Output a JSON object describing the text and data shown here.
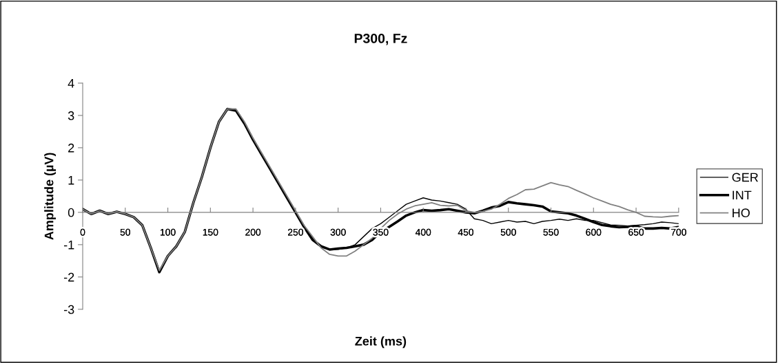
{
  "chart_data": {
    "type": "line",
    "title": "P300, Fz",
    "xlabel": "Zeit (ms)",
    "ylabel": "Amplitude (µV)",
    "x": [
      0,
      10,
      20,
      30,
      40,
      50,
      60,
      70,
      80,
      90,
      100,
      110,
      120,
      130,
      140,
      150,
      160,
      170,
      180,
      190,
      200,
      210,
      220,
      230,
      240,
      250,
      260,
      270,
      280,
      290,
      300,
      310,
      320,
      330,
      340,
      350,
      360,
      370,
      380,
      390,
      400,
      410,
      420,
      430,
      440,
      450,
      460,
      470,
      480,
      490,
      500,
      510,
      520,
      530,
      540,
      550,
      560,
      570,
      580,
      590,
      600,
      610,
      620,
      630,
      640,
      650,
      660,
      670,
      680,
      690,
      700
    ],
    "series": [
      {
        "name": "GER",
        "color": "#000000",
        "values": [
          0.1,
          -0.05,
          0.05,
          -0.05,
          0.02,
          -0.05,
          -0.15,
          -0.4,
          -1.1,
          -1.85,
          -1.35,
          -1.05,
          -0.6,
          0.3,
          1.1,
          2.0,
          2.8,
          3.2,
          3.15,
          2.75,
          2.25,
          1.8,
          1.35,
          0.9,
          0.45,
          0.0,
          -0.45,
          -0.8,
          -1.05,
          -1.15,
          -1.15,
          -1.1,
          -1.0,
          -0.75,
          -0.5,
          -0.35,
          -0.15,
          0.05,
          0.25,
          0.35,
          0.45,
          0.38,
          0.35,
          0.3,
          0.25,
          0.1,
          -0.2,
          -0.25,
          -0.35,
          -0.3,
          -0.25,
          -0.3,
          -0.28,
          -0.35,
          -0.28,
          -0.25,
          -0.21,
          -0.25,
          -0.2,
          -0.25,
          -0.25,
          -0.32,
          -0.39,
          -0.4,
          -0.42,
          -0.4,
          -0.38,
          -0.35,
          -0.3,
          -0.32,
          -0.35
        ]
      },
      {
        "name": "INT",
        "color": "#000000",
        "values": [
          0.1,
          -0.05,
          0.05,
          -0.05,
          0.02,
          -0.05,
          -0.15,
          -0.4,
          -1.1,
          -1.85,
          -1.35,
          -1.05,
          -0.6,
          0.3,
          1.1,
          2.0,
          2.8,
          3.2,
          3.15,
          2.75,
          2.25,
          1.8,
          1.35,
          0.9,
          0.45,
          0.0,
          -0.45,
          -0.85,
          -1.05,
          -1.15,
          -1.12,
          -1.1,
          -1.05,
          -1.0,
          -0.85,
          -0.6,
          -0.45,
          -0.28,
          -0.1,
          0.0,
          0.07,
          0.05,
          0.07,
          0.1,
          0.05,
          0.0,
          -0.03,
          0.05,
          0.15,
          0.2,
          0.32,
          0.28,
          0.25,
          0.22,
          0.18,
          0.03,
          0.0,
          -0.03,
          -0.1,
          -0.2,
          -0.3,
          -0.39,
          -0.43,
          -0.46,
          -0.45,
          -0.43,
          -0.5,
          -0.5,
          -0.48,
          -0.5,
          -0.45
        ]
      },
      {
        "name": "HO",
        "color": "#808080",
        "values": [
          0.1,
          -0.05,
          0.05,
          -0.05,
          0.02,
          -0.05,
          -0.15,
          -0.4,
          -1.1,
          -1.8,
          -1.35,
          -1.05,
          -0.6,
          0.3,
          1.1,
          2.0,
          2.8,
          3.2,
          3.2,
          2.8,
          2.3,
          1.85,
          1.4,
          0.95,
          0.5,
          0.05,
          -0.4,
          -0.75,
          -1.1,
          -1.3,
          -1.35,
          -1.35,
          -1.2,
          -1.0,
          -0.8,
          -0.5,
          -0.25,
          -0.05,
          0.1,
          0.2,
          0.25,
          0.3,
          0.22,
          0.2,
          0.22,
          0.05,
          0.0,
          0.03,
          0.1,
          0.25,
          0.43,
          0.55,
          0.7,
          0.72,
          0.82,
          0.92,
          0.85,
          0.8,
          0.68,
          0.57,
          0.45,
          0.35,
          0.25,
          0.18,
          0.08,
          0.0,
          -0.12,
          -0.14,
          -0.15,
          -0.12,
          -0.1
        ]
      }
    ],
    "xlim": [
      0,
      700
    ],
    "xticks": [
      0,
      50,
      100,
      150,
      200,
      250,
      300,
      350,
      400,
      450,
      500,
      550,
      600,
      650,
      700
    ],
    "ylim": [
      -3,
      4
    ],
    "yticks": [
      -3,
      -2,
      -1,
      0,
      1,
      2,
      3,
      4
    ],
    "grid": false,
    "legend": "right"
  }
}
